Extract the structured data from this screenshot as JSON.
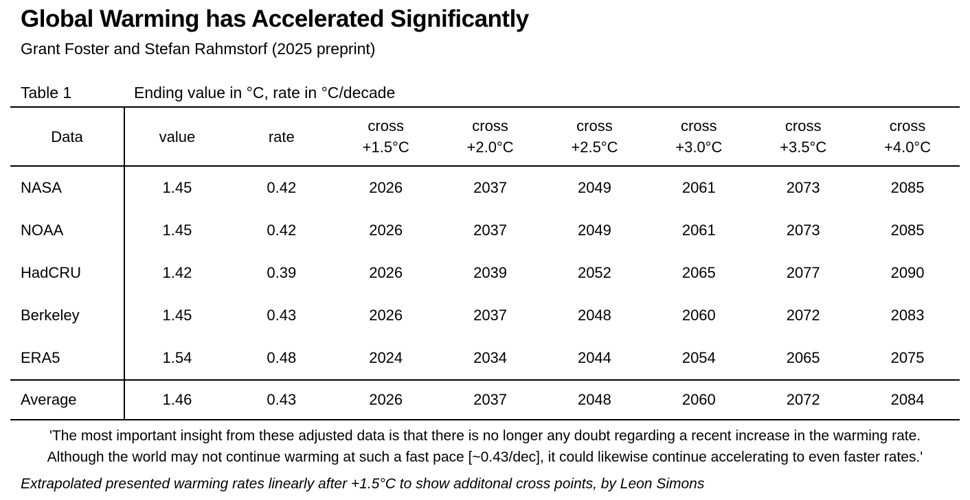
{
  "page": {
    "title": "Global Warming has Accelerated Significantly",
    "subtitle": "Grant Foster and Stefan Rahmstorf (2025 preprint)"
  },
  "table": {
    "caption_label": "Table 1",
    "caption_text": "Ending value in °C, rate in °C/decade",
    "headers": [
      {
        "label": "Data"
      },
      {
        "label": "value"
      },
      {
        "label": "rate"
      },
      {
        "top": "cross",
        "bottom": "+1.5°C"
      },
      {
        "top": "cross",
        "bottom": "+2.0°C"
      },
      {
        "top": "cross",
        "bottom": "+2.5°C"
      },
      {
        "top": "cross",
        "bottom": "+3.0°C"
      },
      {
        "top": "cross",
        "bottom": "+3.5°C"
      },
      {
        "top": "cross",
        "bottom": "+4.0°C"
      }
    ],
    "rows": [
      {
        "label": "NASA",
        "values": [
          "1.45",
          "0.42",
          "2026",
          "2037",
          "2049",
          "2061",
          "2073",
          "2085"
        ]
      },
      {
        "label": "NOAA",
        "values": [
          "1.45",
          "0.42",
          "2026",
          "2037",
          "2049",
          "2061",
          "2073",
          "2085"
        ]
      },
      {
        "label": "HadCRU",
        "values": [
          "1.42",
          "0.39",
          "2026",
          "2039",
          "2052",
          "2065",
          "2077",
          "2090"
        ]
      },
      {
        "label": "Berkeley",
        "values": [
          "1.45",
          "0.43",
          "2026",
          "2037",
          "2048",
          "2060",
          "2072",
          "2083"
        ]
      },
      {
        "label": "ERA5",
        "values": [
          "1.54",
          "0.48",
          "2024",
          "2034",
          "2044",
          "2054",
          "2065",
          "2075"
        ]
      }
    ],
    "average_row": {
      "label": "Average",
      "values": [
        "1.46",
        "0.43",
        "2026",
        "2037",
        "2048",
        "2060",
        "2072",
        "2084"
      ]
    }
  },
  "footer": {
    "quote_line1": "'The most important insight from these adjusted data is that there is no longer any doubt regarding a recent increase in the warming rate.",
    "quote_line2": "Although the world may not continue warming at such a fast pace [~0.43/dec], it could likewise continue accelerating to even faster rates.'",
    "note": "Extrapolated presented warming rates linearly after +1.5°C to show additonal cross points, by Leon Simons"
  }
}
